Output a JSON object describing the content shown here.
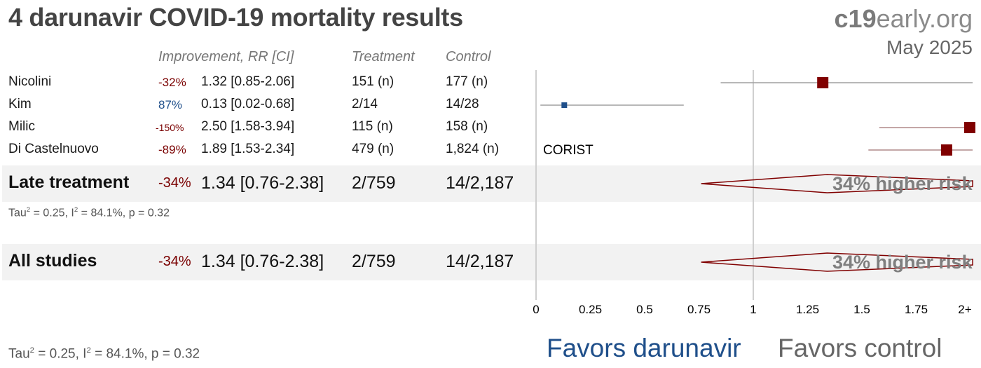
{
  "title": "4 darunavir COVID-19 mortality results",
  "brand": {
    "bold": "c19",
    "rest": "early.org"
  },
  "date": "May 2025",
  "headers": {
    "improvement": "Improvement, RR [CI]",
    "treatment": "Treatment",
    "control": "Control"
  },
  "studies": [
    {
      "name": "Nicolini",
      "improvement": "-32%",
      "rr_ci": "1.32 [0.85-2.06]",
      "treatment": "151 (n)",
      "control": "177 (n)"
    },
    {
      "name": "Kim",
      "improvement": "87%",
      "rr_ci": "0.13 [0.02-0.68]",
      "treatment": "2/14",
      "control": "14/28"
    },
    {
      "name": "Milic",
      "improvement": "-150%",
      "rr_ci": "2.50 [1.58-3.94]",
      "treatment": "115 (n)",
      "control": "158 (n)"
    },
    {
      "name": "Di Castelnuovo",
      "improvement": "-89%",
      "rr_ci": "1.89 [1.53-2.34]",
      "treatment": "479 (n)",
      "control": "1,824 (n)",
      "note": "CORIST"
    }
  ],
  "late": {
    "name": "Late treatment",
    "improvement": "-34%",
    "rr_ci": "1.34 [0.76-2.38]",
    "treatment": "2/759",
    "control": "14/2,187",
    "stats": {
      "tau": "Tau",
      "rest": " = 0.25, I",
      "rest2": " = 84.1%, p = 0.32",
      "sup": "2"
    },
    "label": "34% higher risk"
  },
  "all": {
    "name": "All studies",
    "improvement": "-34%",
    "rr_ci": "1.34 [0.76-2.38]",
    "treatment": "2/759",
    "control": "14/2,187",
    "label": "34% higher risk"
  },
  "footer_stats": {
    "tau": "Tau",
    "sup": "2",
    "rest": " = 0.25, I",
    "rest2": " = 84.1%, p = 0.32"
  },
  "favors": {
    "left": "Favors darunavir",
    "right": "Favors control"
  },
  "colors": {
    "harm": "#800000",
    "benefit": "#1f4f8a",
    "ci_line": "#a0a0a0",
    "band": "#f2f2f2"
  },
  "chart_data": {
    "type": "forest",
    "x_ticks": [
      "0",
      "0.25",
      "0.5",
      "0.75",
      "1",
      "1.25",
      "1.5",
      "1.75",
      "2+"
    ],
    "xlim": [
      0,
      2
    ],
    "null_value": 1,
    "studies": [
      {
        "name": "Nicolini",
        "rr": 1.32,
        "lo": 0.85,
        "hi": 2.06,
        "weight": "large",
        "direction": "harm"
      },
      {
        "name": "Kim",
        "rr": 0.13,
        "lo": 0.02,
        "hi": 0.68,
        "weight": "small",
        "direction": "benefit"
      },
      {
        "name": "Milic",
        "rr": 2.5,
        "lo": 1.58,
        "hi": 3.94,
        "weight": "large",
        "direction": "harm"
      },
      {
        "name": "Di Castelnuovo",
        "rr": 1.89,
        "lo": 1.53,
        "hi": 2.34,
        "weight": "large",
        "direction": "harm"
      }
    ],
    "pooled": [
      {
        "name": "Late treatment",
        "rr": 1.34,
        "lo": 0.76,
        "hi": 2.38
      },
      {
        "name": "All studies",
        "rr": 1.34,
        "lo": 0.76,
        "hi": 2.38
      }
    ]
  }
}
